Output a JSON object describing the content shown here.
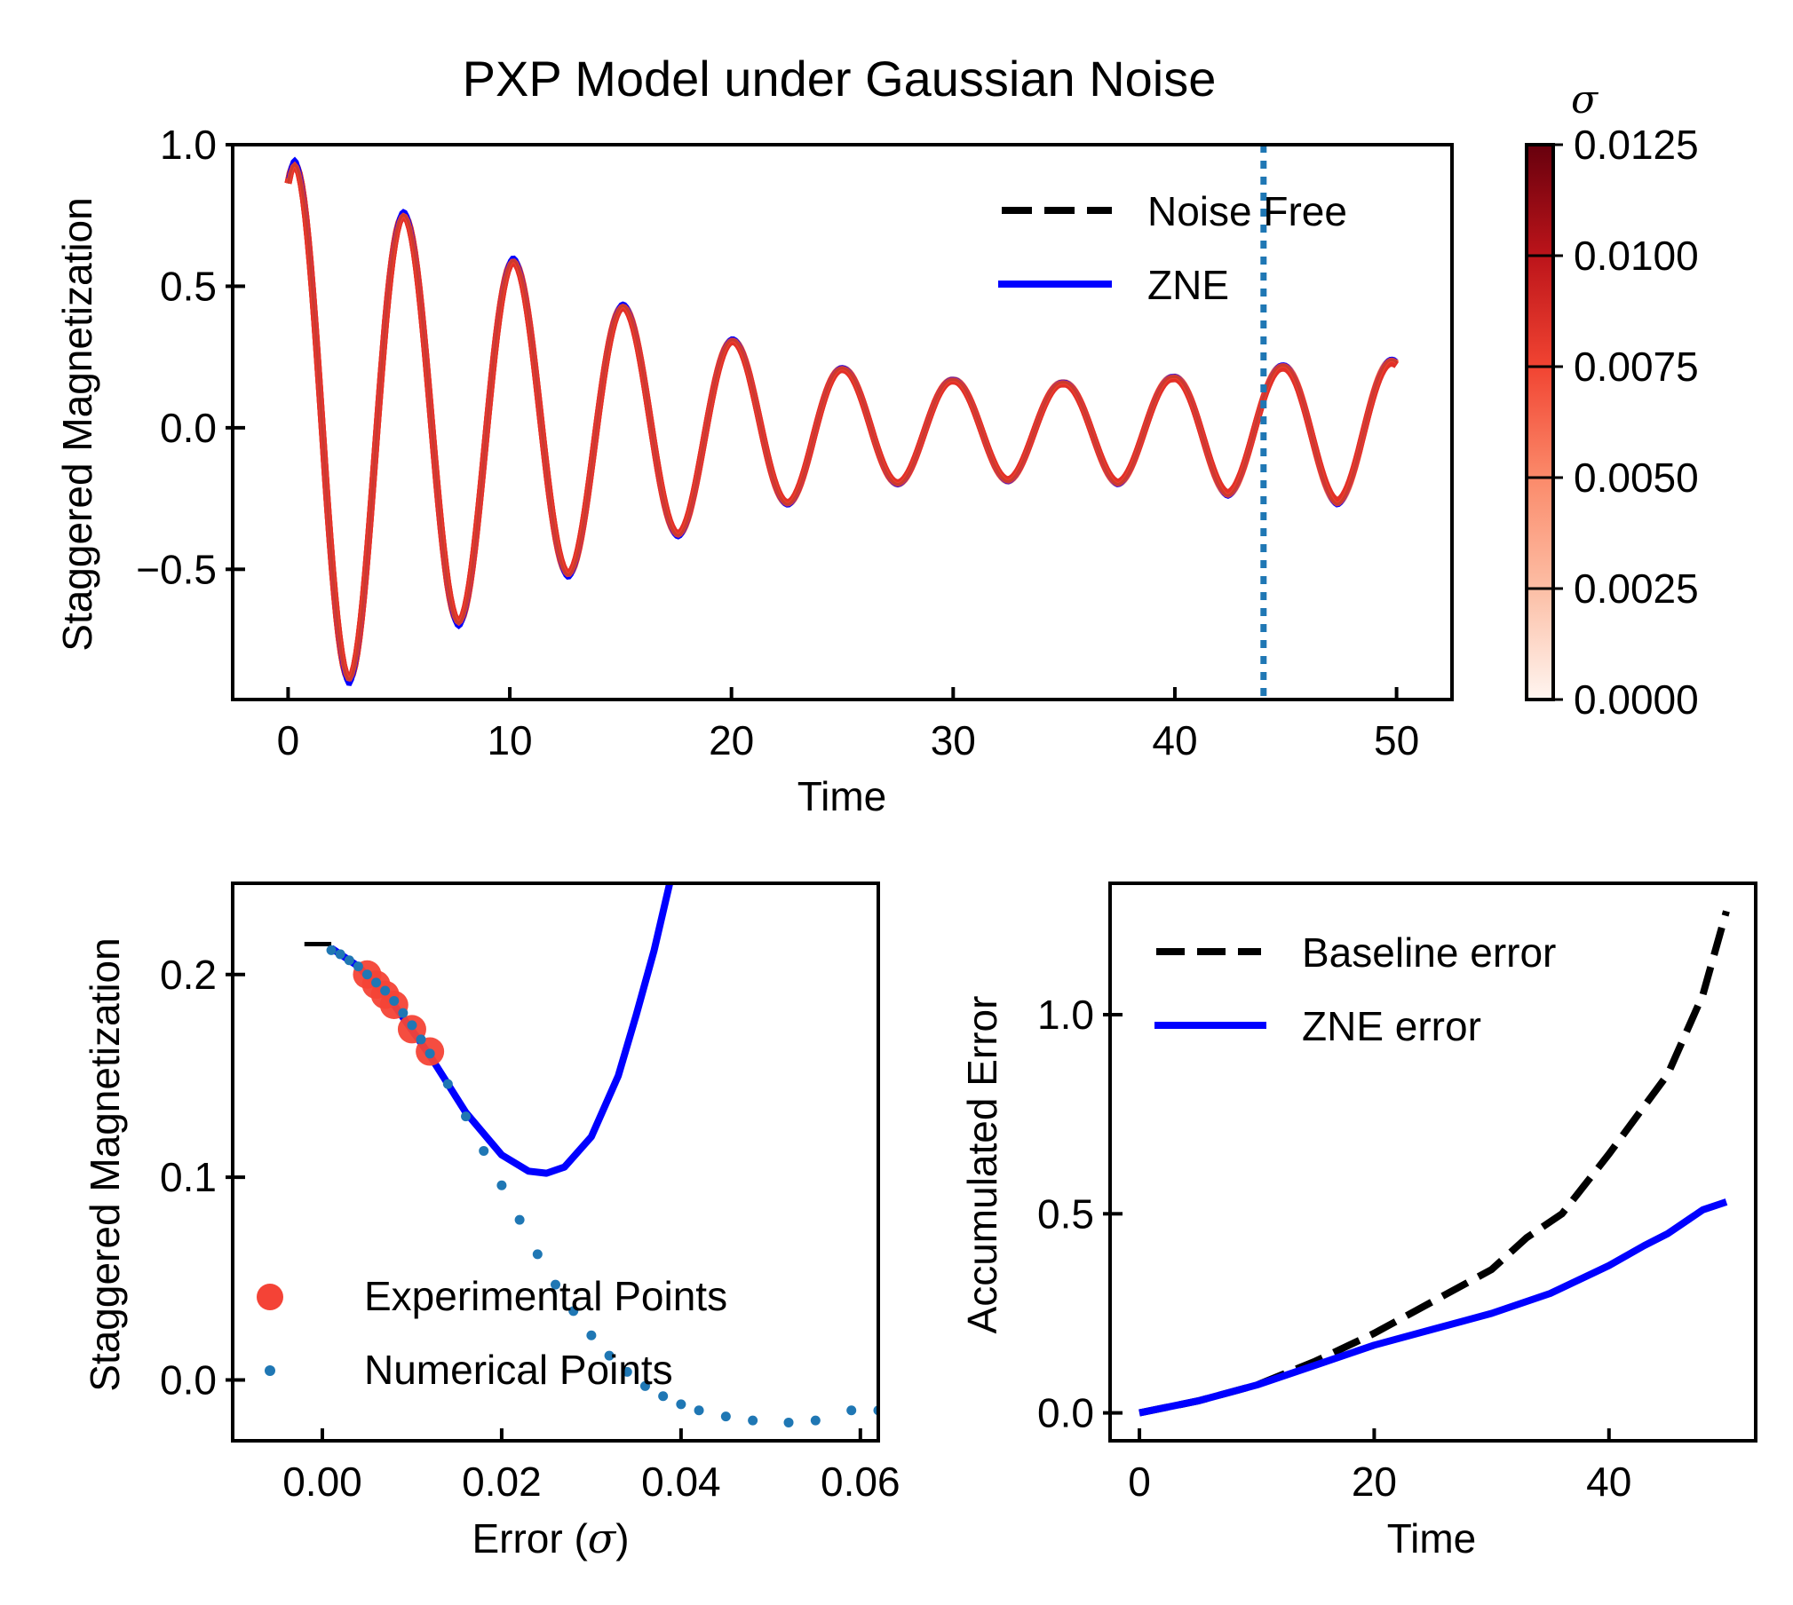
{
  "figure": {
    "title": "PXP Model under Gaussian Noise",
    "colorbar": {
      "label": "σ",
      "ticks": [
        "0.0000",
        "0.0025",
        "0.0050",
        "0.0075",
        "0.0100",
        "0.0125"
      ],
      "range": [
        0,
        0.0125
      ],
      "colormap": "Reds",
      "colors": [
        "#fff5f0",
        "#fcbea5",
        "#fb7050",
        "#f14432",
        "#bc141a",
        "#67000d"
      ]
    }
  },
  "chart_data": [
    {
      "id": "top",
      "type": "line",
      "title": "PXP Model under Gaussian Noise",
      "xlabel": "Time",
      "ylabel": "Staggered Magnetization",
      "xlim": [
        -2.5,
        52.5
      ],
      "ylim": [
        -0.96,
        1.0
      ],
      "xticks": [
        0,
        10,
        20,
        30,
        40,
        50
      ],
      "xticklabels": [
        "0",
        "10",
        "20",
        "30",
        "40",
        "50"
      ],
      "yticks": [
        -0.5,
        0.0,
        0.5,
        1.0
      ],
      "yticklabels": [
        "−0.5",
        "0.0",
        "0.5",
        "1.0"
      ],
      "model": {
        "t0": 0.3,
        "x_end": 50,
        "period": 4.95,
        "amplitude_start": 0.93,
        "extrema_amplitudes": [
          0.93,
          0.89,
          0.75,
          0.69,
          0.59,
          0.52,
          0.43,
          0.38,
          0.31,
          0.27,
          0.21,
          0.2,
          0.17,
          0.19,
          0.16,
          0.2,
          0.18,
          0.24,
          0.22,
          0.27,
          0.24
        ]
      },
      "series": [
        {
          "name": "Noise Free",
          "style": "dashed",
          "color": "#000000"
        },
        {
          "name": "ZNE",
          "style": "solid",
          "color": "#0000ff"
        }
      ],
      "noisy_sigmas": [
        0.0025,
        0.005,
        0.0075,
        0.01,
        0.0125
      ],
      "vline": {
        "x": 44,
        "style": "dotted",
        "color": "#1f77b4"
      },
      "legend": {
        "position": "top-right",
        "entries": [
          "Noise Free",
          "ZNE"
        ]
      }
    },
    {
      "id": "bottom-left",
      "type": "scatter",
      "xlabel": "Error (σ)",
      "ylabel": "Staggered Magnetization",
      "xlim": [
        -0.01,
        0.062
      ],
      "ylim": [
        -0.03,
        0.245
      ],
      "xticks": [
        0.0,
        0.02,
        0.04,
        0.06
      ],
      "xticklabels": [
        "0.00",
        "0.02",
        "0.04",
        "0.06"
      ],
      "yticks": [
        0.0,
        0.1,
        0.2
      ],
      "yticklabels": [
        "0.0",
        "0.1",
        "0.2"
      ],
      "reference_level": {
        "y": 0.215,
        "x": [
          -0.002,
          0.001
        ],
        "color": "#000000"
      },
      "fit_curve": {
        "color": "#0000ff",
        "x": [
          0.001,
          0.004,
          0.008,
          0.012,
          0.016,
          0.02,
          0.023,
          0.025,
          0.027,
          0.03,
          0.033,
          0.035,
          0.037,
          0.039
        ],
        "y": [
          0.213,
          0.204,
          0.185,
          0.16,
          0.132,
          0.111,
          0.103,
          0.102,
          0.105,
          0.12,
          0.15,
          0.18,
          0.212,
          0.25
        ]
      },
      "experimental_points": {
        "name": "Experimental Points",
        "color": "#f44336",
        "x": [
          0.005,
          0.006,
          0.007,
          0.008,
          0.01,
          0.012
        ],
        "y": [
          0.2,
          0.195,
          0.19,
          0.185,
          0.173,
          0.162
        ]
      },
      "numerical_points": {
        "name": "Numerical Points",
        "color": "#1f77b4",
        "x": [
          0.001,
          0.002,
          0.003,
          0.004,
          0.005,
          0.006,
          0.007,
          0.008,
          0.009,
          0.01,
          0.011,
          0.012,
          0.014,
          0.016,
          0.018,
          0.02,
          0.022,
          0.024,
          0.026,
          0.028,
          0.03,
          0.032,
          0.034,
          0.036,
          0.038,
          0.04,
          0.042,
          0.045,
          0.048,
          0.052,
          0.055,
          0.059,
          0.062
        ],
        "y": [
          0.212,
          0.21,
          0.207,
          0.204,
          0.2,
          0.196,
          0.192,
          0.187,
          0.181,
          0.175,
          0.168,
          0.161,
          0.146,
          0.13,
          0.113,
          0.096,
          0.079,
          0.062,
          0.047,
          0.034,
          0.022,
          0.012,
          0.004,
          -0.003,
          -0.008,
          -0.012,
          -0.015,
          -0.018,
          -0.02,
          -0.021,
          -0.02,
          -0.015,
          -0.015
        ]
      },
      "legend": {
        "position": "lower-right",
        "entries": [
          "Experimental Points",
          "Numerical Points"
        ]
      }
    },
    {
      "id": "bottom-right",
      "type": "line",
      "xlabel": "Time",
      "ylabel": "Accumulated Error",
      "xlim": [
        -2.5,
        52.5
      ],
      "ylim": [
        -0.07,
        1.33
      ],
      "xticks": [
        0,
        20,
        40
      ],
      "xticklabels": [
        "0",
        "20",
        "40"
      ],
      "yticks": [
        0.0,
        0.5,
        1.0
      ],
      "yticklabels": [
        "0.0",
        "0.5",
        "1.0"
      ],
      "series": [
        {
          "name": "Baseline error",
          "style": "dashed",
          "color": "#000000",
          "x": [
            0,
            5,
            10,
            15,
            20,
            25,
            30,
            33,
            36,
            40,
            43,
            45,
            48,
            50
          ],
          "y": [
            0.0,
            0.03,
            0.07,
            0.13,
            0.2,
            0.28,
            0.36,
            0.44,
            0.5,
            0.65,
            0.77,
            0.85,
            1.05,
            1.26
          ]
        },
        {
          "name": "ZNE error",
          "style": "solid",
          "color": "#0000ff",
          "x": [
            0,
            5,
            10,
            15,
            20,
            25,
            30,
            35,
            40,
            43,
            45,
            48,
            50
          ],
          "y": [
            0.0,
            0.03,
            0.07,
            0.12,
            0.17,
            0.21,
            0.25,
            0.3,
            0.37,
            0.42,
            0.45,
            0.51,
            0.53
          ]
        }
      ],
      "legend": {
        "position": "top-left",
        "entries": [
          "Baseline error",
          "ZNE error"
        ]
      }
    }
  ]
}
